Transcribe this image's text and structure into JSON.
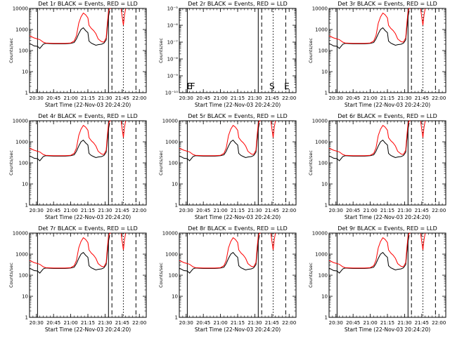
{
  "colors": {
    "events": "#000000",
    "lld": "#ff0000"
  },
  "chart_data": [
    {
      "type": "line",
      "title": "Det 1r BLACK = Events, RED = LLD",
      "scale": "log",
      "ylim": [
        1,
        10000
      ],
      "empty": false,
      "ylabel": "Counts/sec",
      "xlabel": "Start Time (22-Nov-03 20:24:20)",
      "x_ticks": [
        "20:30",
        "20:45",
        "21:00",
        "21:15",
        "21:30",
        "21:45",
        "22:00"
      ],
      "y_ticks": [
        "1",
        "10",
        "100",
        "1000",
        "10000"
      ],
      "flags": []
    },
    {
      "type": "line",
      "title": "Det 2r BLACK = Events, RED = LLD",
      "scale": "log",
      "ylim": [
        1e-10,
        1e-05
      ],
      "empty": true,
      "ylabel": "Counts/sec",
      "xlabel": "Start Time (22-Nov-03 20:24:20)",
      "x_ticks": [
        "20:30",
        "20:45",
        "21:00",
        "21:15",
        "21:30",
        "21:45",
        "22:00"
      ],
      "y_ticks": [
        "10⁻¹⁰",
        "10⁻⁹",
        "10⁻⁸",
        "10⁻⁷",
        "10⁻⁶",
        "10⁻⁵"
      ],
      "flags": [
        {
          "label": "E",
          "x": "20:30"
        },
        {
          "label": "F",
          "x": "20:33"
        },
        {
          "label": "S",
          "x": "21:42"
        },
        {
          "label": "E",
          "x": "21:55"
        }
      ]
    },
    {
      "type": "line",
      "title": "Det 3r BLACK = Events, RED = LLD",
      "scale": "log",
      "ylim": [
        1,
        10000
      ],
      "empty": false,
      "ylabel": "Counts/sec",
      "xlabel": "Start Time (22-Nov-03 20:24:20)",
      "x_ticks": [
        "20:30",
        "20:45",
        "21:00",
        "21:15",
        "21:30",
        "21:45",
        "22:00"
      ],
      "y_ticks": [
        "1",
        "10",
        "100",
        "1000",
        "10000"
      ],
      "flags": []
    },
    {
      "type": "line",
      "title": "Det 4r BLACK = Events, RED = LLD",
      "scale": "log",
      "ylim": [
        1,
        10000
      ],
      "empty": false,
      "ylabel": "Counts/sec",
      "xlabel": "Start Time (22-Nov-03 20:24:20)",
      "x_ticks": [
        "20:30",
        "20:45",
        "21:00",
        "21:15",
        "21:30",
        "21:45",
        "22:00"
      ],
      "y_ticks": [
        "1",
        "10",
        "100",
        "1000",
        "10000"
      ],
      "flags": []
    },
    {
      "type": "line",
      "title": "Det 5r BLACK = Events, RED = LLD",
      "scale": "log",
      "ylim": [
        1,
        10000
      ],
      "empty": false,
      "ylabel": "Counts/sec",
      "xlabel": "Start Time (22-Nov-03 20:24:20)",
      "x_ticks": [
        "20:30",
        "20:45",
        "21:00",
        "21:15",
        "21:30",
        "21:45",
        "22:00"
      ],
      "y_ticks": [
        "1",
        "10",
        "100",
        "1000",
        "10000"
      ],
      "flags": []
    },
    {
      "type": "line",
      "title": "Det 6r BLACK = Events, RED = LLD",
      "scale": "log",
      "ylim": [
        1,
        10000
      ],
      "empty": false,
      "ylabel": "Counts/sec",
      "xlabel": "Start Time (22-Nov-03 20:24:20)",
      "x_ticks": [
        "20:30",
        "20:45",
        "21:00",
        "21:15",
        "21:30",
        "21:45",
        "22:00"
      ],
      "y_ticks": [
        "1",
        "10",
        "100",
        "1000",
        "10000"
      ],
      "flags": []
    },
    {
      "type": "line",
      "title": "Det 7r BLACK = Events, RED = LLD",
      "scale": "log",
      "ylim": [
        1,
        10000
      ],
      "empty": false,
      "ylabel": "Counts/sec",
      "xlabel": "Start Time (22-Nov-03 20:24:20)",
      "x_ticks": [
        "20:30",
        "20:45",
        "21:00",
        "21:15",
        "21:30",
        "21:45",
        "22:00"
      ],
      "y_ticks": [
        "1",
        "10",
        "100",
        "1000",
        "10000"
      ],
      "flags": []
    },
    {
      "type": "line",
      "title": "Det 8r BLACK = Events, RED = LLD",
      "scale": "log",
      "ylim": [
        1,
        10000
      ],
      "empty": false,
      "ylabel": "Counts/sec",
      "xlabel": "Start Time (22-Nov-03 20:24:20)",
      "x_ticks": [
        "20:30",
        "20:45",
        "21:00",
        "21:15",
        "21:30",
        "21:45",
        "22:00"
      ],
      "y_ticks": [
        "1",
        "10",
        "100",
        "1000",
        "10000"
      ],
      "flags": []
    },
    {
      "type": "line",
      "title": "Det 9r BLACK = Events, RED = LLD",
      "scale": "log",
      "ylim": [
        1,
        10000
      ],
      "empty": false,
      "ylabel": "Counts/sec",
      "xlabel": "Start Time (22-Nov-03 20:24:20)",
      "x_ticks": [
        "20:30",
        "20:45",
        "21:00",
        "21:15",
        "21:30",
        "21:45",
        "22:00"
      ],
      "y_ticks": [
        "1",
        "10",
        "100",
        "1000",
        "10000"
      ],
      "flags": []
    }
  ]
}
